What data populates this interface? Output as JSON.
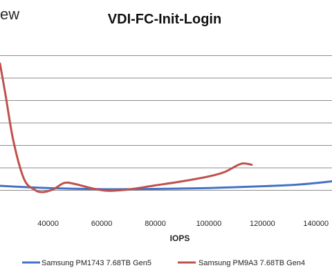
{
  "logo": {
    "text": "ew"
  },
  "chart_data": {
    "type": "line",
    "title": "VDI-FC-Init-Login",
    "xlabel": "IOPS",
    "ylabel": "",
    "xlim": [
      22000,
      146000
    ],
    "ylim": [
      0,
      8
    ],
    "grid": true,
    "legend_position": "bottom",
    "xticks": [
      40000,
      60000,
      80000,
      100000,
      120000,
      140000
    ],
    "xtick_labels": [
      "40000",
      "60000",
      "80000",
      "100000",
      120000,
      "140000"
    ],
    "yticks": [
      1,
      2,
      3,
      4,
      5,
      6,
      7
    ],
    "series": [
      {
        "name": "Samsung PM1743 7.68TB Gen5",
        "color": "#4472C4",
        "points": [
          [
            22000,
            1.2
          ],
          [
            30000,
            1.15
          ],
          [
            40000,
            1.1
          ],
          [
            50000,
            1.07
          ],
          [
            60000,
            1.05
          ],
          [
            70000,
            1.05
          ],
          [
            80000,
            1.06
          ],
          [
            90000,
            1.08
          ],
          [
            100000,
            1.1
          ],
          [
            110000,
            1.14
          ],
          [
            120000,
            1.18
          ],
          [
            130000,
            1.23
          ],
          [
            138000,
            1.3
          ],
          [
            146000,
            1.4
          ]
        ]
      },
      {
        "name": "Samsung PM9A3 7.68TB Gen4",
        "color": "#C0504D",
        "points": [
          [
            22000,
            6.65
          ],
          [
            24000,
            5.3
          ],
          [
            27000,
            3.2
          ],
          [
            31000,
            1.5
          ],
          [
            35000,
            1.02
          ],
          [
            38000,
            0.92
          ],
          [
            42000,
            1.05
          ],
          [
            46000,
            1.33
          ],
          [
            50000,
            1.28
          ],
          [
            56000,
            1.1
          ],
          [
            62000,
            0.98
          ],
          [
            70000,
            1.04
          ],
          [
            80000,
            1.22
          ],
          [
            90000,
            1.4
          ],
          [
            100000,
            1.62
          ],
          [
            106000,
            1.82
          ],
          [
            112000,
            2.18
          ],
          [
            116000,
            2.14
          ]
        ]
      }
    ]
  }
}
